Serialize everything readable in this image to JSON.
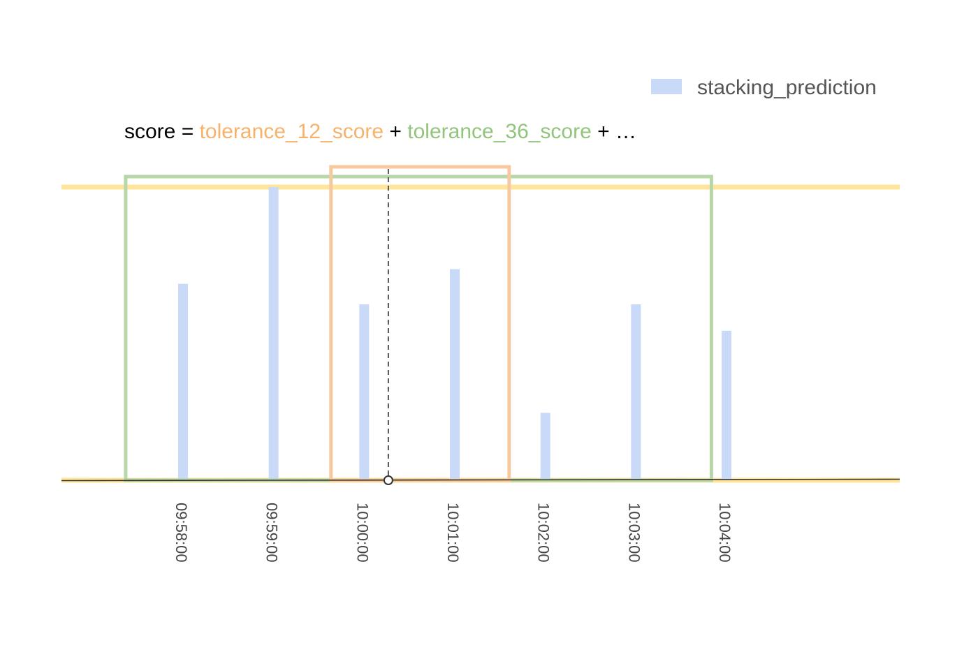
{
  "chart_data": {
    "type": "bar",
    "x_type": "time",
    "series": [
      {
        "name": "stacking_prediction",
        "x": [
          "09:58:00",
          "09:59:00",
          "10:00:00",
          "10:01:00",
          "10:02:00",
          "10:03:00",
          "10:04:00"
        ],
        "values": [
          0.67,
          1.0,
          0.6,
          0.72,
          0.23,
          0.6,
          0.51
        ]
      }
    ],
    "ticks": [
      "09:58:00",
      "09:59:00",
      "10:00:00",
      "10:01:00",
      "10:02:00",
      "10:03:00",
      "10:04:00"
    ],
    "ylim": [
      0,
      1
    ],
    "event_time": "10:00:16",
    "windows": [
      {
        "name": "tolerance_36_score",
        "start": "09:57:22",
        "end": "10:03:50",
        "color": "#b7d7a8"
      },
      {
        "name": "tolerance_12_score",
        "start": "09:59:38",
        "end": "10:01:36",
        "color": "#f6c99e"
      }
    ],
    "formula": {
      "prefix": "score = ",
      "term1": "tolerance_12_score",
      "plus1": " + ",
      "term2": "tolerance_36_score",
      "suffix": " + …"
    },
    "legend": {
      "label": "stacking_prediction",
      "position": "top-right"
    },
    "colors": {
      "bar": "#c9daf8",
      "term1": "#f6b26b",
      "term2": "#93c47d",
      "bound_line": "#ffe599",
      "axis": "#333333",
      "marker": "#555555",
      "tick_text": "#444444",
      "legend_text": "#555555"
    },
    "grid": false
  }
}
